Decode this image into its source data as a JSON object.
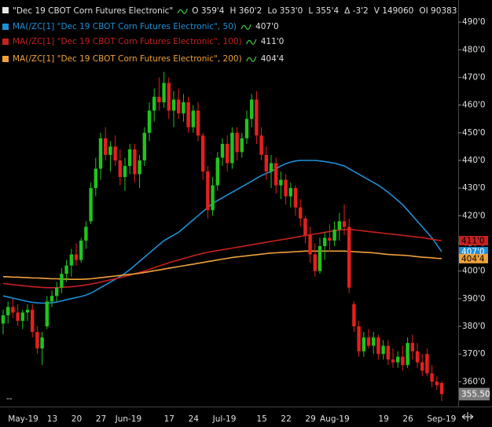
{
  "chart_data": {
    "type": "candlestick",
    "header": {
      "symbol": "\"Dec 19 CBOT Corn Futures Electronic\"",
      "quote": [
        "O 359'4",
        "H 360'2",
        "Lo 353'0",
        "L 355'4",
        "Δ -3'2",
        "V 149060",
        "OI 90383"
      ]
    },
    "categories": [
      null,
      "May-19",
      null,
      null,
      null,
      null,
      null,
      null,
      null,
      "13",
      null,
      null,
      null,
      null,
      "20",
      null,
      null,
      null,
      null,
      "27",
      null,
      null,
      null,
      "Jun-19",
      null,
      null,
      null,
      null,
      null,
      null,
      null,
      null,
      null,
      "17",
      null,
      null,
      null,
      null,
      "24",
      null,
      null,
      null,
      null,
      "Jul-19",
      null,
      null,
      null,
      null,
      null,
      null,
      null,
      null,
      "15",
      null,
      null,
      null,
      null,
      "22",
      null,
      null,
      null,
      null,
      "29",
      null,
      null,
      "Aug-19",
      null,
      null,
      null,
      null,
      null,
      null,
      null,
      null,
      null,
      null,
      null,
      "19",
      null,
      null,
      null,
      null,
      "26",
      null,
      null,
      null,
      null,
      "Sep-19",
      null,
      null,
      null
    ],
    "open": [
      381,
      384,
      387,
      385,
      382,
      385,
      386,
      378,
      372,
      380,
      389,
      391,
      394,
      399,
      402,
      406,
      404,
      411,
      418,
      430,
      437,
      448,
      442,
      445,
      440,
      434,
      438,
      444,
      435,
      440,
      450,
      458,
      463,
      461,
      468,
      458,
      462,
      457,
      461,
      452,
      458,
      449,
      436,
      422,
      431,
      441,
      446,
      439,
      450,
      443,
      448,
      455,
      462,
      449,
      442,
      436,
      439,
      431,
      433,
      427,
      430,
      423,
      419,
      413,
      406,
      400,
      409,
      412,
      411,
      415,
      418,
      416,
      388,
      380,
      371,
      376,
      373,
      376,
      370,
      373,
      368,
      367,
      369,
      366,
      374,
      371,
      367,
      370,
      363,
      360,
      359.5
    ],
    "high": [
      386,
      389,
      390,
      388,
      386,
      388,
      388,
      380,
      378,
      391,
      393,
      396,
      401,
      404,
      408,
      410,
      412,
      418,
      432,
      441,
      450,
      452,
      447,
      449,
      444,
      441,
      446,
      446,
      442,
      452,
      461,
      466,
      470,
      472,
      470,
      465,
      466,
      464,
      463,
      460,
      461,
      450,
      438,
      434,
      443,
      448,
      449,
      452,
      452,
      450,
      458,
      464,
      465,
      452,
      445,
      442,
      441,
      436,
      435,
      432,
      431,
      426,
      420,
      416,
      410,
      412,
      414,
      417,
      418,
      421,
      424,
      419,
      389,
      382,
      378,
      379,
      378,
      377,
      375,
      375,
      372,
      371,
      373,
      376,
      377,
      374,
      370,
      372,
      366,
      362,
      360.25
    ],
    "low": [
      377,
      381,
      383,
      380,
      379,
      382,
      376,
      370,
      366,
      379,
      387,
      389,
      392,
      396,
      398,
      402,
      403,
      408,
      417,
      427,
      433,
      440,
      436,
      438,
      431,
      429,
      435,
      432,
      430,
      438,
      447,
      454,
      458,
      459,
      455,
      452,
      455,
      454,
      450,
      450,
      447,
      433,
      419,
      420,
      429,
      438,
      436,
      437,
      440,
      441,
      446,
      452,
      446,
      440,
      433,
      430,
      428,
      426,
      424,
      423,
      420,
      416,
      410,
      403,
      398,
      399,
      404,
      407,
      409,
      411,
      413,
      392,
      378,
      369,
      369,
      372,
      370,
      368,
      368,
      366,
      365,
      365,
      364,
      365,
      368,
      365,
      362,
      362,
      358,
      357,
      353
    ],
    "close": [
      384,
      387,
      385,
      382,
      385,
      386,
      378,
      372,
      376,
      389,
      391,
      394,
      399,
      402,
      406,
      404,
      411,
      416,
      430,
      437,
      448,
      442,
      445,
      440,
      434,
      438,
      444,
      435,
      440,
      450,
      458,
      463,
      461,
      468,
      458,
      462,
      457,
      461,
      452,
      458,
      449,
      436,
      422,
      431,
      441,
      446,
      439,
      450,
      443,
      448,
      455,
      462,
      449,
      442,
      436,
      439,
      431,
      433,
      427,
      430,
      423,
      419,
      413,
      406,
      400,
      409,
      412,
      411,
      415,
      418,
      416,
      394,
      380,
      371,
      376,
      373,
      376,
      370,
      373,
      368,
      367,
      369,
      366,
      374,
      371,
      367,
      364,
      363,
      360,
      358.75,
      355.5
    ],
    "up_color": "#1fc41f",
    "down_color": "#e4201f",
    "close_label": "355.50",
    "corner_label": "--",
    "series": [
      {
        "name": "MA(/ZC[1] \"Dec 19 CBOT Corn Futures Electronic\", 50)",
        "color": "#1f8fd6",
        "last_label": "407'0",
        "values": [
          391,
          390.6,
          390.2,
          389.8,
          389.4,
          389,
          388.7,
          388.5,
          388.4,
          388.4,
          388.5,
          388.8,
          389.2,
          389.6,
          390,
          390.4,
          390.8,
          391.3,
          392,
          393,
          394,
          395,
          396,
          397,
          398,
          399.2,
          400.5,
          402,
          403.5,
          405,
          406.5,
          408,
          409.5,
          411,
          412,
          413,
          414,
          415.5,
          417,
          418.5,
          420,
          421.5,
          423,
          424.5,
          425.5,
          426.5,
          427.5,
          428.5,
          429.5,
          430.5,
          431.5,
          432.5,
          433.5,
          434.5,
          435.3,
          436,
          437,
          438,
          438.8,
          439.4,
          439.8,
          440,
          440,
          440,
          440,
          439.8,
          439.6,
          439.3,
          439,
          438.5,
          438,
          437,
          436,
          435,
          434,
          433,
          432,
          431,
          429.8,
          428.5,
          427,
          425.5,
          424,
          422,
          420,
          418,
          416,
          414,
          412,
          409.5,
          407
        ]
      },
      {
        "name": "MA(/ZC[1] \"Dec 19 CBOT Corn Futures Electronic\", 100)",
        "color": "#c62020",
        "last_label": "411'0",
        "values": [
          395.5,
          395.3,
          395.1,
          394.9,
          394.7,
          394.5,
          394.3,
          394.2,
          394.1,
          394,
          394,
          394,
          394.1,
          394.2,
          394.3,
          394.5,
          394.7,
          395,
          395.3,
          395.6,
          396,
          396.4,
          396.8,
          397.2,
          397.6,
          398,
          398.5,
          399,
          399.5,
          400,
          400.6,
          401.2,
          401.8,
          402.4,
          403,
          403.5,
          404,
          404.5,
          405,
          405.5,
          406,
          406.4,
          406.8,
          407.1,
          407.4,
          407.7,
          408,
          408.3,
          408.6,
          408.9,
          409.2,
          409.5,
          409.8,
          410.1,
          410.4,
          410.7,
          411,
          411.3,
          411.6,
          411.9,
          412.2,
          412.5,
          412.8,
          413.1,
          413.4,
          413.7,
          414,
          414.3,
          414.6,
          414.8,
          415,
          415,
          414.9,
          414.7,
          414.5,
          414.3,
          414.1,
          413.9,
          413.7,
          413.5,
          413.3,
          413.1,
          412.9,
          412.7,
          412.5,
          412.3,
          412.1,
          411.8,
          411.5,
          411.2,
          411
        ]
      },
      {
        "name": "MA(/ZC[1] \"Dec 19 CBOT Corn Futures Electronic\", 200)",
        "color": "#f0a23a",
        "last_label": "404'4",
        "values": [
          398,
          397.9,
          397.8,
          397.8,
          397.7,
          397.6,
          397.5,
          397.5,
          397.4,
          397.3,
          397.2,
          397.2,
          397.1,
          397.1,
          397,
          397,
          397,
          397.1,
          397.2,
          397.4,
          397.6,
          397.8,
          398,
          398.2,
          398.4,
          398.6,
          398.8,
          399,
          399.2,
          399.5,
          399.8,
          400.1,
          400.4,
          400.7,
          401,
          401.3,
          401.6,
          401.9,
          402.2,
          402.5,
          402.8,
          403.1,
          403.4,
          403.7,
          404,
          404.3,
          404.6,
          404.9,
          405.1,
          405.3,
          405.5,
          405.7,
          405.9,
          406.1,
          406.3,
          406.5,
          406.6,
          406.7,
          406.8,
          406.9,
          407,
          407.1,
          407.2,
          407.2,
          407.2,
          407.2,
          407.2,
          407.2,
          407.2,
          407.2,
          407.2,
          407.1,
          407,
          406.9,
          406.8,
          406.7,
          406.6,
          406.4,
          406.2,
          406,
          405.9,
          405.8,
          405.7,
          405.6,
          405.4,
          405.2,
          405,
          404.9,
          404.8,
          404.6,
          404.5
        ]
      }
    ],
    "ylim": [
      351,
      498
    ],
    "yticks": [
      {
        "value": 360,
        "label": "360'0"
      },
      {
        "value": 370,
        "label": "370'0"
      },
      {
        "value": 380,
        "label": "380'0"
      },
      {
        "value": 390,
        "label": "390'0"
      },
      {
        "value": 400,
        "label": "400'0"
      },
      {
        "value": 410,
        "label": "410'0"
      },
      {
        "value": 420,
        "label": "420'0"
      },
      {
        "value": 430,
        "label": "430'0"
      },
      {
        "value": 440,
        "label": "440'0"
      },
      {
        "value": 450,
        "label": "450'0"
      },
      {
        "value": 460,
        "label": "460'0"
      },
      {
        "value": 470,
        "label": "470'0"
      },
      {
        "value": 480,
        "label": "480'0"
      },
      {
        "value": 490,
        "label": "490'0"
      }
    ]
  }
}
